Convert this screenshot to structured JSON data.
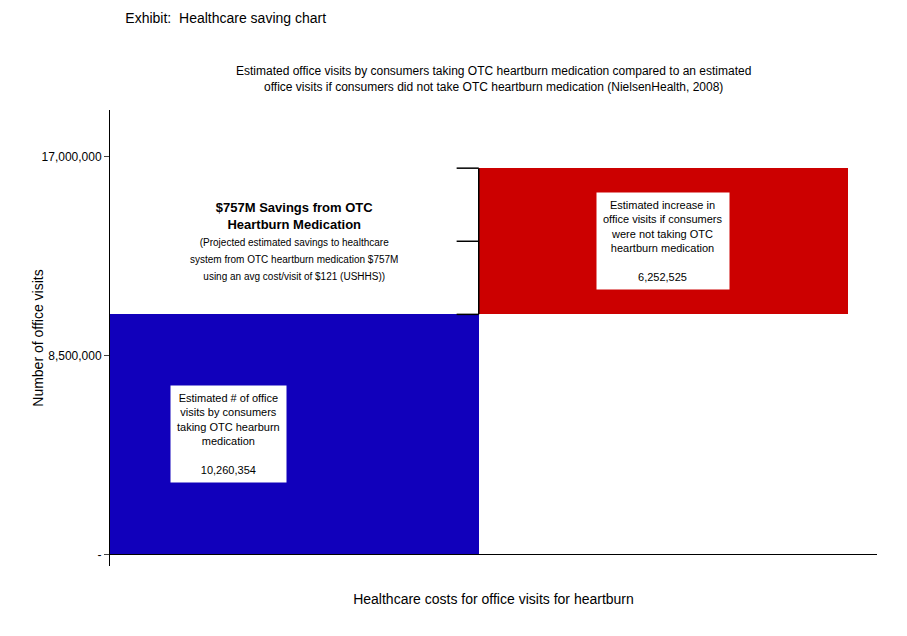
{
  "chart_data": {
    "type": "waterfall",
    "title": "Exhibit:  Healthcare saving chart",
    "subtitle": "Estimated office visits by consumers taking OTC heartburn medication compared to an estimated\noffice visits if consumers did not take OTC heartburn medication (NielsenHealth, 2008)",
    "xlabel": "Healthcare costs for office visits for heartburn",
    "ylabel": "Number of office visits",
    "categories": [
      null,
      null
    ],
    "values": [
      10260354,
      6252525
    ],
    "value_labels": [
      "10,260,354",
      "6,252,525"
    ],
    "data_labels": true,
    "colors": [
      "#1100BB",
      "#CC0000"
    ],
    "ylim": [
      -500000,
      19000000
    ],
    "yticks": [
      {
        "value": 0,
        "label": "-"
      },
      {
        "value": 8500000,
        "label": "8,500,000"
      },
      {
        "value": 17000000,
        "label": "17,000,000"
      }
    ],
    "tick_labels": "y",
    "grid": false,
    "annotations": [
      "Estimated # of office\nvisits by consumers\ntaking OTC hearburn\nmedication",
      "Estimated increase in\noffice visits if consumers\nwere not taking OTC\nheartburn medication",
      "$757M Savings from OTC\nHeartburn Medication",
      "(Projected estimated savings to healthcare\nsystem from OTC heartburn medication $757M\nusing an avg cost/visit of $121 (USHHS))"
    ]
  }
}
